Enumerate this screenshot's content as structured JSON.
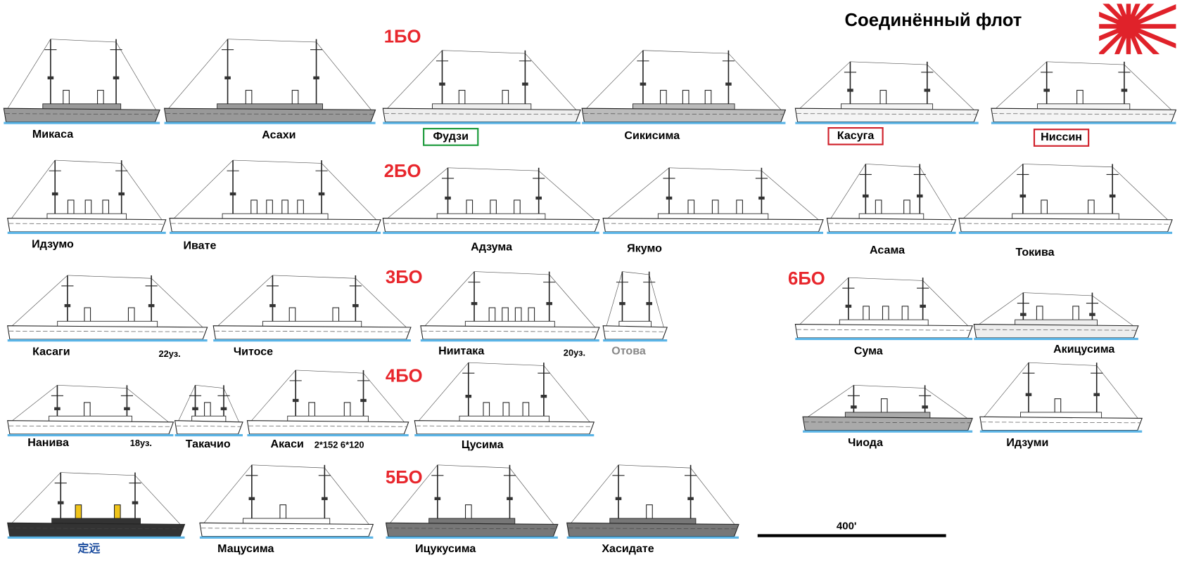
{
  "title": "Соединённый флот",
  "divisions": [
    "1БО",
    "2БО",
    "3БО",
    "4БО",
    "5БО",
    "6БО"
  ],
  "ships": [
    {
      "name": "Микаса"
    },
    {
      "name": "Асахи"
    },
    {
      "name": "Фудзи"
    },
    {
      "name": "Сикисима"
    },
    {
      "name": "Касуга"
    },
    {
      "name": "Ниссин"
    },
    {
      "name": "Идзумо"
    },
    {
      "name": "Ивате"
    },
    {
      "name": "Адзума"
    },
    {
      "name": "Якумо"
    },
    {
      "name": "Асама"
    },
    {
      "name": "Токива"
    },
    {
      "name": "Касаги",
      "note": "22уз."
    },
    {
      "name": "Читосе"
    },
    {
      "name": "Ниитака",
      "note": "20уз."
    },
    {
      "name": "Отова"
    },
    {
      "name": "Сума"
    },
    {
      "name": "Акицусима"
    },
    {
      "name": "Нанива",
      "note": "18уз."
    },
    {
      "name": "Такачио"
    },
    {
      "name": "Акаси",
      "note": "2*152  6*120"
    },
    {
      "name": "Цусима"
    },
    {
      "name": "Чиода"
    },
    {
      "name": "Идзуми"
    },
    {
      "name": "定远"
    },
    {
      "name": "Мацусима"
    },
    {
      "name": "Ицукусима"
    },
    {
      "name": "Хасидате"
    }
  ],
  "scale_label": "400'"
}
